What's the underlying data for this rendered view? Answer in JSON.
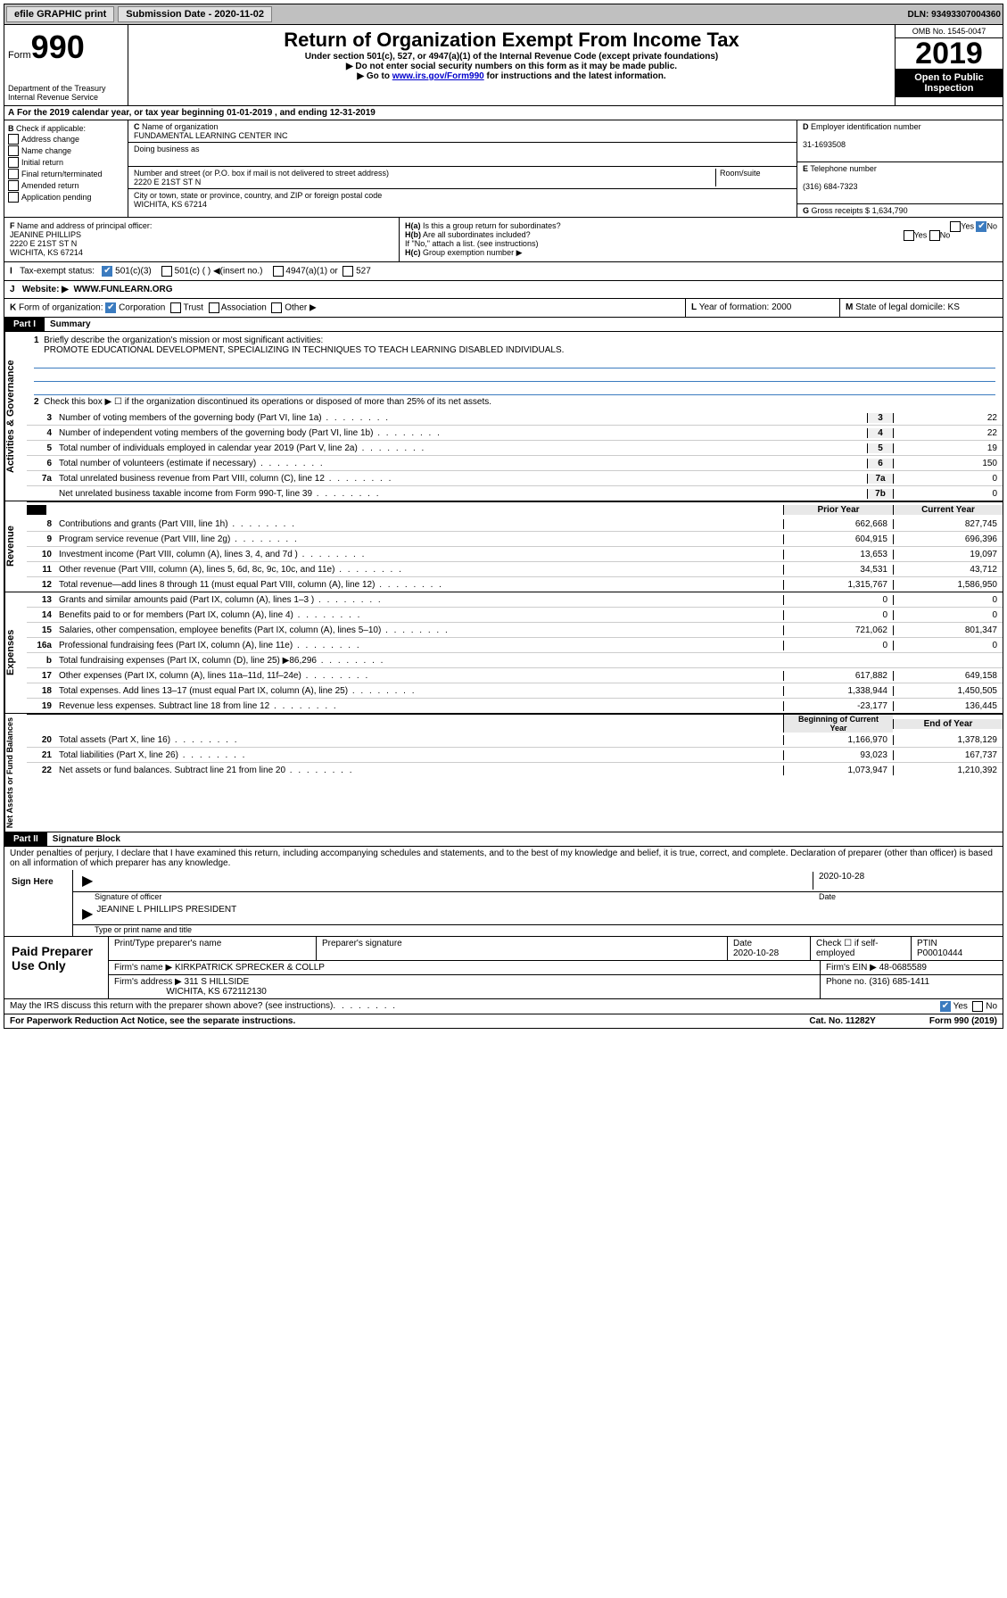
{
  "top": {
    "efile": "efile GRAPHIC print",
    "submission": "Submission Date - 2020-11-02",
    "dln": "DLN: 93493307004360"
  },
  "header": {
    "form_label": "Form",
    "form_num": "990",
    "dept": "Department of the Treasury\nInternal Revenue Service",
    "title": "Return of Organization Exempt From Income Tax",
    "sub1": "Under section 501(c), 527, or 4947(a)(1) of the Internal Revenue Code (except private foundations)",
    "sub2": "▶ Do not enter social security numbers on this form as it may be made public.",
    "sub3a": "▶ Go to ",
    "sub3_link": "www.irs.gov/Form990",
    "sub3b": " for instructions and the latest information.",
    "omb": "OMB No. 1545-0047",
    "year": "2019",
    "open": "Open to Public Inspection"
  },
  "rowA": "For the 2019 calendar year, or tax year beginning 01-01-2019    , and ending 12-31-2019",
  "B": {
    "label": "Check if applicable:",
    "opts": [
      "Address change",
      "Name change",
      "Initial return",
      "Final return/terminated",
      "Amended return",
      "Application pending"
    ]
  },
  "C": {
    "name_label": "Name of organization",
    "name": "FUNDAMENTAL LEARNING CENTER INC",
    "dba_label": "Doing business as",
    "street_label": "Number and street (or P.O. box if mail is not delivered to street address)",
    "room_label": "Room/suite",
    "street": "2220 E 21ST ST N",
    "city_label": "City or town, state or province, country, and ZIP or foreign postal code",
    "city": "WICHITA, KS  67214"
  },
  "D": {
    "label": "Employer identification number",
    "val": "31-1693508"
  },
  "E": {
    "label": "Telephone number",
    "val": "(316) 684-7323"
  },
  "G": {
    "label": "Gross receipts $",
    "val": "1,634,790"
  },
  "F": {
    "label": "Name and address of principal officer:",
    "name": "JEANINE PHILLIPS",
    "addr1": "2220 E 21ST ST N",
    "addr2": "WICHITA, KS  67214"
  },
  "H": {
    "a": "Is this a group return for subordinates?",
    "b": "Are all subordinates included?",
    "b_note": "If \"No,\" attach a list. (see instructions)",
    "c": "Group exemption number ▶"
  },
  "I": {
    "label": "Tax-exempt status:",
    "opts": [
      "501(c)(3)",
      "501(c) (   ) ◀(insert no.)",
      "4947(a)(1) or",
      "527"
    ]
  },
  "J": {
    "label": "Website: ▶",
    "val": "WWW.FUNLEARN.ORG"
  },
  "K": {
    "label": "Form of organization:",
    "opts": [
      "Corporation",
      "Trust",
      "Association",
      "Other ▶"
    ]
  },
  "L": {
    "label": "Year of formation:",
    "val": "2000"
  },
  "M": {
    "label": "State of legal domicile:",
    "val": "KS"
  },
  "partI": {
    "hdr": "Part I",
    "title": "Summary",
    "l1": "Briefly describe the organization's mission or most significant activities:",
    "l1_val": "PROMOTE EDUCATIONAL DEVELOPMENT, SPECIALIZING IN TECHNIQUES TO TEACH LEARNING DISABLED INDIVIDUALS.",
    "l2": "Check this box ▶ ☐  if the organization discontinued its operations or disposed of more than 25% of its net assets."
  },
  "gov_lines": [
    {
      "n": "3",
      "d": "Number of voting members of the governing body (Part VI, line 1a)",
      "b": "3",
      "v": "22"
    },
    {
      "n": "4",
      "d": "Number of independent voting members of the governing body (Part VI, line 1b)",
      "b": "4",
      "v": "22"
    },
    {
      "n": "5",
      "d": "Total number of individuals employed in calendar year 2019 (Part V, line 2a)",
      "b": "5",
      "v": "19"
    },
    {
      "n": "6",
      "d": "Total number of volunteers (estimate if necessary)",
      "b": "6",
      "v": "150"
    },
    {
      "n": "7a",
      "d": "Total unrelated business revenue from Part VIII, column (C), line 12",
      "b": "7a",
      "v": "0"
    },
    {
      "n": "",
      "d": "Net unrelated business taxable income from Form 990-T, line 39",
      "b": "7b",
      "v": "0"
    }
  ],
  "rev_hdr": {
    "py": "Prior Year",
    "cy": "Current Year"
  },
  "rev_lines": [
    {
      "n": "8",
      "d": "Contributions and grants (Part VIII, line 1h)",
      "py": "662,668",
      "cy": "827,745"
    },
    {
      "n": "9",
      "d": "Program service revenue (Part VIII, line 2g)",
      "py": "604,915",
      "cy": "696,396"
    },
    {
      "n": "10",
      "d": "Investment income (Part VIII, column (A), lines 3, 4, and 7d )",
      "py": "13,653",
      "cy": "19,097"
    },
    {
      "n": "11",
      "d": "Other revenue (Part VIII, column (A), lines 5, 6d, 8c, 9c, 10c, and 11e)",
      "py": "34,531",
      "cy": "43,712"
    },
    {
      "n": "12",
      "d": "Total revenue—add lines 8 through 11 (must equal Part VIII, column (A), line 12)",
      "py": "1,315,767",
      "cy": "1,586,950"
    }
  ],
  "exp_lines": [
    {
      "n": "13",
      "d": "Grants and similar amounts paid (Part IX, column (A), lines 1–3 )",
      "py": "0",
      "cy": "0"
    },
    {
      "n": "14",
      "d": "Benefits paid to or for members (Part IX, column (A), line 4)",
      "py": "0",
      "cy": "0"
    },
    {
      "n": "15",
      "d": "Salaries, other compensation, employee benefits (Part IX, column (A), lines 5–10)",
      "py": "721,062",
      "cy": "801,347"
    },
    {
      "n": "16a",
      "d": "Professional fundraising fees (Part IX, column (A), line 11e)",
      "py": "0",
      "cy": "0"
    },
    {
      "n": "b",
      "d": "Total fundraising expenses (Part IX, column (D), line 25) ▶86,296",
      "py": "",
      "cy": ""
    },
    {
      "n": "17",
      "d": "Other expenses (Part IX, column (A), lines 11a–11d, 11f–24e)",
      "py": "617,882",
      "cy": "649,158"
    },
    {
      "n": "18",
      "d": "Total expenses. Add lines 13–17 (must equal Part IX, column (A), line 25)",
      "py": "1,338,944",
      "cy": "1,450,505"
    },
    {
      "n": "19",
      "d": "Revenue less expenses. Subtract line 18 from line 12",
      "py": "-23,177",
      "cy": "136,445"
    }
  ],
  "net_hdr": {
    "py": "Beginning of Current Year",
    "cy": "End of Year"
  },
  "net_lines": [
    {
      "n": "20",
      "d": "Total assets (Part X, line 16)",
      "py": "1,166,970",
      "cy": "1,378,129"
    },
    {
      "n": "21",
      "d": "Total liabilities (Part X, line 26)",
      "py": "93,023",
      "cy": "167,737"
    },
    {
      "n": "22",
      "d": "Net assets or fund balances. Subtract line 21 from line 20",
      "py": "1,073,947",
      "cy": "1,210,392"
    }
  ],
  "partII": {
    "hdr": "Part II",
    "title": "Signature Block"
  },
  "perjury": "Under penalties of perjury, I declare that I have examined this return, including accompanying schedules and statements, and to the best of my knowledge and belief, it is true, correct, and complete. Declaration of preparer (other than officer) is based on all information of which preparer has any knowledge.",
  "sign": {
    "here": "Sign Here",
    "date": "2020-10-28",
    "sig_label": "Signature of officer",
    "date_label": "Date",
    "name": "JEANINE L PHILLIPS PRESIDENT",
    "name_label": "Type or print name and title"
  },
  "prep": {
    "left": "Paid Preparer Use Only",
    "h1": "Print/Type preparer's name",
    "h2": "Preparer's signature",
    "h3": "Date",
    "h4": "Check ☐ if self-employed",
    "h5": "PTIN",
    "date": "2020-10-28",
    "ptin": "P00010444",
    "firm_label": "Firm's name   ▶",
    "firm": "KIRKPATRICK SPRECKER & COLLP",
    "ein_label": "Firm's EIN ▶",
    "ein": "48-0685589",
    "addr_label": "Firm's address ▶",
    "addr": "311 S HILLSIDE",
    "addr2": "WICHITA, KS  672112130",
    "phone_label": "Phone no.",
    "phone": "(316) 685-1411"
  },
  "discuss": "May the IRS discuss this return with the preparer shown above? (see instructions)",
  "footer": {
    "l": "For Paperwork Reduction Act Notice, see the separate instructions.",
    "c": "Cat. No. 11282Y",
    "r": "Form 990 (2019)"
  }
}
